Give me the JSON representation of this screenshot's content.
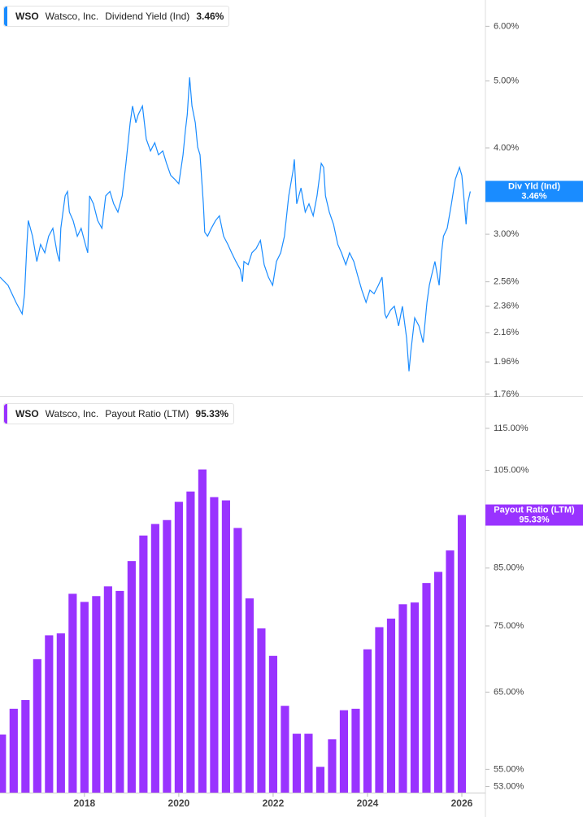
{
  "chart_data": [
    {
      "type": "line",
      "ticker": "WSO",
      "company": "Watsco, Inc.",
      "series": [
        {
          "name": "Dividend Yield (Ind)",
          "tag_name": "Div Yld (Ind)",
          "color": "#1a8cff",
          "values": [
            2.6,
            2.53,
            2.39,
            2.3,
            2.46,
            2.9,
            3.14,
            2.98,
            2.74,
            2.9,
            2.82,
            2.98,
            3.06,
            2.82,
            2.74,
            3.06,
            3.41,
            3.46,
            3.23,
            3.14,
            2.98,
            3.06,
            2.9,
            2.82,
            3.41,
            3.32,
            3.14,
            3.06,
            3.41,
            3.46,
            3.32,
            3.23,
            3.41,
            3.8,
            4.35,
            4.6,
            4.35,
            4.47,
            4.6,
            4.12,
            3.96,
            4.07,
            3.91,
            3.96,
            3.8,
            3.65,
            3.6,
            3.55,
            3.91,
            4.24,
            4.47,
            5.06,
            4.6,
            4.35,
            4.01,
            3.91,
            3.32,
            3.02,
            2.98,
            3.06,
            3.14,
            3.19,
            2.98,
            2.9,
            2.82,
            2.74,
            2.67,
            2.56,
            2.74,
            2.71,
            2.82,
            2.86,
            2.94,
            2.71,
            2.6,
            2.53,
            2.74,
            2.82,
            2.98,
            3.41,
            3.7,
            3.85,
            3.32,
            3.5,
            3.23,
            3.32,
            3.19,
            3.41,
            3.8,
            3.75,
            3.41,
            3.23,
            3.1,
            2.9,
            2.82,
            2.71,
            2.82,
            2.74,
            2.6,
            2.49,
            2.39,
            2.49,
            2.46,
            2.53,
            2.6,
            2.3,
            2.27,
            2.33,
            2.36,
            2.21,
            2.36,
            2.12,
            1.9,
            2.03,
            2.27,
            2.21,
            2.09,
            2.39,
            2.53,
            2.6,
            2.74,
            2.53,
            2.82,
            2.98,
            3.06,
            3.32,
            3.6,
            3.75,
            3.65,
            3.41,
            3.1,
            3.32,
            3.46
          ],
          "last_label": {
            "value": 3.46,
            "label": "3.46%"
          }
        }
      ],
      "x": [
        2016.21,
        2016.38,
        2016.55,
        2016.68,
        2016.73,
        2016.78,
        2016.81,
        2016.9,
        2016.99,
        2017.07,
        2017.16,
        2017.24,
        2017.33,
        2017.42,
        2017.47,
        2017.5,
        2017.59,
        2017.64,
        2017.68,
        2017.76,
        2017.85,
        2017.93,
        2018.02,
        2018.07,
        2018.11,
        2018.19,
        2018.28,
        2018.37,
        2018.45,
        2018.54,
        2018.62,
        2018.71,
        2018.8,
        2018.88,
        2018.97,
        2019.02,
        2019.09,
        2019.14,
        2019.23,
        2019.31,
        2019.4,
        2019.49,
        2019.57,
        2019.66,
        2019.74,
        2019.83,
        2019.92,
        2020.0,
        2020.09,
        2020.14,
        2020.18,
        2020.23,
        2020.28,
        2020.35,
        2020.4,
        2020.45,
        2020.52,
        2020.55,
        2020.61,
        2020.69,
        2020.78,
        2020.86,
        2020.95,
        2021.04,
        2021.12,
        2021.21,
        2021.3,
        2021.35,
        2021.38,
        2021.47,
        2021.55,
        2021.64,
        2021.73,
        2021.81,
        2021.9,
        2021.99,
        2022.07,
        2022.16,
        2022.24,
        2022.33,
        2022.42,
        2022.45,
        2022.5,
        2022.59,
        2022.68,
        2022.76,
        2022.85,
        2022.93,
        2023.02,
        2023.07,
        2023.11,
        2023.19,
        2023.28,
        2023.37,
        2023.45,
        2023.54,
        2023.62,
        2023.71,
        2023.8,
        2023.88,
        2023.97,
        2024.05,
        2024.14,
        2024.23,
        2024.31,
        2024.37,
        2024.4,
        2024.49,
        2024.57,
        2024.66,
        2024.74,
        2024.83,
        2024.88,
        2024.92,
        2025.0,
        2025.09,
        2025.18,
        2025.26,
        2025.31,
        2025.35,
        2025.43,
        2025.52,
        2025.57,
        2025.61,
        2025.69,
        2025.78,
        2025.86,
        2025.95,
        2026.0,
        2026.04,
        2026.09,
        2026.12,
        2026.18
      ],
      "xlim": [
        2016.21,
        2026.5
      ],
      "ylim": [
        1.75,
        6.55
      ],
      "log_scale": true,
      "grid": false,
      "yticks": [
        {
          "value": 6,
          "label": "6.00%"
        },
        {
          "value": 5,
          "label": "5.00%"
        },
        {
          "value": 4,
          "label": "4.00%"
        },
        {
          "value": 3,
          "label": "3.00%"
        },
        {
          "value": 2.56,
          "label": "2.56%"
        },
        {
          "value": 2.36,
          "label": "2.36%"
        },
        {
          "value": 2.16,
          "label": "2.16%"
        },
        {
          "value": 1.96,
          "label": "1.96%"
        },
        {
          "value": 1.76,
          "label": "1.76%"
        }
      ]
    },
    {
      "type": "bar",
      "ticker": "WSO",
      "company": "Watsco, Inc.",
      "series": [
        {
          "name": "Payout Ratio (LTM)",
          "color": "#9933ff",
          "values": [
            59.3,
            62.7,
            63.9,
            69.8,
            73.5,
            73.8,
            80.4,
            79.0,
            80.0,
            81.7,
            80.9,
            86.3,
            91.2,
            93.5,
            94.3,
            98.1,
            100.3,
            105.2,
            99.1,
            98.4,
            92.7,
            79.6,
            74.6,
            70.3,
            63.1,
            59.4,
            59.4,
            55.3,
            58.7,
            62.5,
            62.7,
            71.3,
            74.8,
            76.2,
            78.6,
            78.9,
            82.3,
            84.3,
            88.3,
            95.33
          ],
          "last_label": {
            "value": 95.33,
            "label": "95.33%"
          }
        }
      ],
      "x": [
        2016.25,
        2016.5,
        2016.75,
        2017.0,
        2017.25,
        2017.5,
        2017.75,
        2018.0,
        2018.25,
        2018.5,
        2018.75,
        2019.0,
        2019.25,
        2019.5,
        2019.75,
        2020.0,
        2020.25,
        2020.5,
        2020.75,
        2021.0,
        2021.25,
        2021.5,
        2021.75,
        2022.0,
        2022.25,
        2022.5,
        2022.75,
        2023.0,
        2023.25,
        2023.5,
        2023.75,
        2024.0,
        2024.25,
        2024.5,
        2024.75,
        2025.0,
        2025.25,
        2025.5,
        2025.75,
        2026.0
      ],
      "xlim": [
        2016.21,
        2026.5
      ],
      "xticks": [
        2018,
        2020,
        2022,
        2024,
        2026
      ],
      "ylim": [
        52.3,
        122.7
      ],
      "log_scale": true,
      "grid": false,
      "yticks": [
        {
          "value": 115,
          "label": "115.00%"
        },
        {
          "value": 105,
          "label": "105.00%"
        },
        {
          "value": 85,
          "label": "85.00%"
        },
        {
          "value": 75,
          "label": "75.00%"
        },
        {
          "value": 65,
          "label": "65.00%"
        },
        {
          "value": 55,
          "label": "55.00%"
        },
        {
          "value": 53,
          "label": "53.00%"
        }
      ]
    }
  ]
}
